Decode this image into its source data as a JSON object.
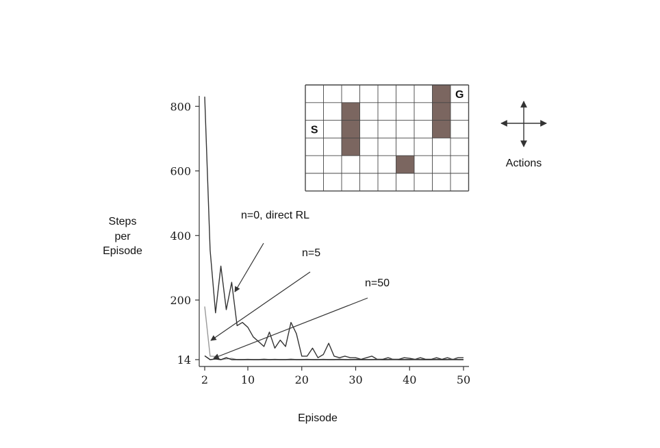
{
  "chart_data": {
    "type": "line",
    "xlabel": "Episode",
    "ylabel": [
      "Steps",
      "per",
      "Episode"
    ],
    "xlim": [
      2,
      50
    ],
    "ylim": [
      0,
      830
    ],
    "xticks": [
      2,
      10,
      20,
      30,
      40,
      50
    ],
    "yticks": [
      14,
      200,
      400,
      600,
      800
    ],
    "grid": false,
    "series": [
      {
        "name": "n=0, direct RL",
        "color": "#333333",
        "x": [
          2,
          3,
          4,
          5,
          6,
          7,
          8,
          9,
          10,
          11,
          12,
          13,
          14,
          15,
          16,
          17,
          18,
          19,
          20,
          21,
          22,
          23,
          24,
          25,
          26,
          27,
          28,
          29,
          30,
          31,
          32,
          33,
          34,
          35,
          36,
          37,
          38,
          39,
          40,
          41,
          42,
          43,
          44,
          45,
          46,
          47,
          48,
          49,
          50
        ],
        "values": [
          830,
          355,
          160,
          305,
          170,
          255,
          120,
          130,
          115,
          85,
          70,
          55,
          100,
          50,
          75,
          55,
          130,
          95,
          25,
          25,
          50,
          20,
          30,
          65,
          25,
          20,
          25,
          20,
          20,
          15,
          20,
          25,
          15,
          15,
          20,
          15,
          15,
          20,
          18,
          15,
          20,
          15,
          15,
          20,
          15,
          20,
          15,
          20,
          20
        ]
      },
      {
        "name": "n=5",
        "color": "#999999",
        "x": [
          2,
          3,
          4,
          5,
          6,
          7,
          8,
          9,
          10,
          11,
          12,
          13,
          14,
          15,
          16,
          17,
          18,
          19,
          20,
          21,
          22,
          23,
          24,
          25,
          26,
          27,
          28,
          29,
          30,
          31,
          32,
          33,
          34,
          35,
          36,
          37,
          38,
          39,
          40,
          41,
          42,
          43,
          44,
          45,
          46,
          47,
          48,
          49,
          50
        ],
        "values": [
          180,
          25,
          24,
          14,
          16,
          18,
          14,
          14,
          15,
          14,
          14,
          16,
          14,
          15,
          14,
          14,
          16,
          14,
          14,
          15,
          14,
          14,
          15,
          14,
          14,
          16,
          14,
          14,
          15,
          14,
          14,
          14,
          15,
          14,
          14,
          16,
          14,
          14,
          14,
          15,
          14,
          14,
          14,
          15,
          14,
          14,
          16,
          14,
          14
        ]
      },
      {
        "name": "n=50",
        "color": "#222222",
        "x": [
          2,
          3,
          4,
          5,
          6,
          7,
          8,
          9,
          10,
          11,
          12,
          13,
          14,
          15,
          16,
          17,
          18,
          19,
          20,
          21,
          22,
          23,
          24,
          25,
          26,
          27,
          28,
          29,
          30,
          31,
          32,
          33,
          34,
          35,
          36,
          37,
          38,
          39,
          40,
          41,
          42,
          43,
          44,
          45,
          46,
          47,
          48,
          49,
          50
        ],
        "values": [
          26,
          14,
          16,
          14,
          20,
          14,
          14,
          14,
          14,
          14,
          14,
          14,
          14,
          14,
          14,
          14,
          14,
          14,
          14,
          14,
          14,
          14,
          14,
          14,
          14,
          14,
          14,
          14,
          14,
          14,
          14,
          14,
          14,
          14,
          14,
          14,
          14,
          14,
          14,
          14,
          14,
          14,
          14,
          14,
          14,
          14,
          14,
          14,
          14
        ]
      }
    ],
    "annotations": [
      {
        "text": "n=0, direct RL",
        "points_to_series": "n=0, direct RL"
      },
      {
        "text": "n=5",
        "points_to_series": "n=5"
      },
      {
        "text": "n=50",
        "points_to_series": "n=50"
      }
    ]
  },
  "maze": {
    "cols": 9,
    "rows": 6,
    "start_label": "S",
    "goal_label": "G",
    "start_cell": [
      0,
      2
    ],
    "goal_cell": [
      8,
      0
    ],
    "walls": [
      [
        2,
        1
      ],
      [
        2,
        2
      ],
      [
        2,
        3
      ],
      [
        7,
        0
      ],
      [
        7,
        1
      ],
      [
        7,
        2
      ],
      [
        5,
        4
      ]
    ],
    "wall_color": "#7b6660"
  },
  "actions": {
    "label": "Actions",
    "icon": "four-way-arrows-icon"
  }
}
